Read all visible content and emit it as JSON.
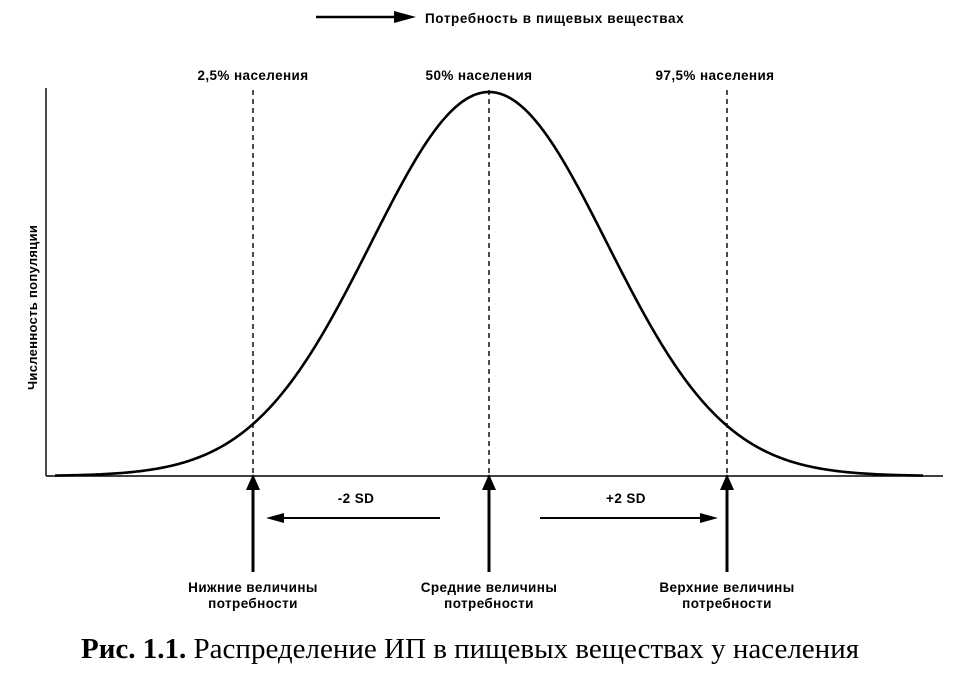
{
  "figure": {
    "x_direction_label": "Потребность в пищевых веществах",
    "y_axis_label": "Численность популяции",
    "percentiles": {
      "lower": "2,5% населения",
      "middle": "50% населения",
      "upper": "97,5% населения"
    },
    "sd_labels": {
      "minus": "-2 SD",
      "plus": "+2 SD"
    },
    "requirement_labels": {
      "lower": [
        "Нижние величины",
        "потребности"
      ],
      "middle": [
        "Средние величины",
        "потребности"
      ],
      "upper": [
        "Верхние величины",
        "потребности"
      ]
    },
    "caption": {
      "number": "Рис. 1.1.",
      "text": " Распределение ИП в пищевых веществах у населения"
    },
    "colors": {
      "ink": "#000000",
      "background": "#ffffff"
    }
  }
}
